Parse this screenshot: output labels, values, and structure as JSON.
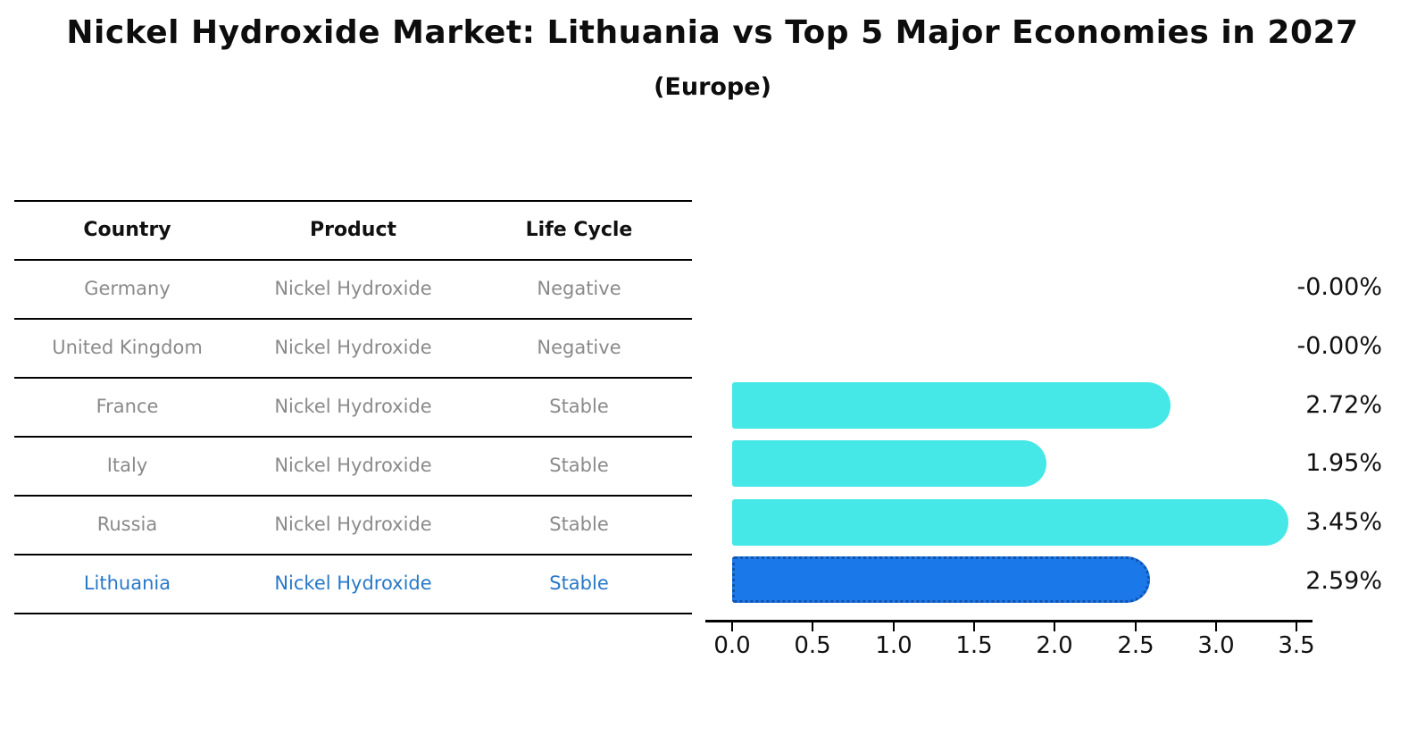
{
  "header": {
    "title": "Nickel Hydroxide Market: Lithuania vs Top 5 Major Economies in 2027",
    "subtitle": "(Europe)"
  },
  "table": {
    "columns": [
      "Country",
      "Product",
      "Life Cycle"
    ],
    "rows": [
      {
        "country": "Germany",
        "product": "Nickel Hydroxide",
        "life_cycle": "Negative",
        "highlight": false
      },
      {
        "country": "United Kingdom",
        "product": "Nickel Hydroxide",
        "life_cycle": "Negative",
        "highlight": false
      },
      {
        "country": "France",
        "product": "Nickel Hydroxide",
        "life_cycle": "Stable",
        "highlight": false
      },
      {
        "country": "Italy",
        "product": "Nickel Hydroxide",
        "life_cycle": "Stable",
        "highlight": false
      },
      {
        "country": "Russia",
        "product": "Nickel Hydroxide",
        "life_cycle": "Stable",
        "highlight": false
      },
      {
        "country": "Lithuania",
        "product": "Nickel Hydroxide",
        "life_cycle": "Stable",
        "highlight": true
      }
    ]
  },
  "chart_data": {
    "type": "bar",
    "orientation": "horizontal",
    "title": "Nickel Hydroxide Market: Lithuania vs Top 5 Major Economies in 2027 (Europe)",
    "categories": [
      "Germany",
      "United Kingdom",
      "France",
      "Italy",
      "Russia",
      "Lithuania"
    ],
    "values": [
      -0.0,
      -0.0,
      2.72,
      1.95,
      3.45,
      2.59
    ],
    "value_labels": [
      "-0.00%",
      "-0.00%",
      "2.72%",
      "1.95%",
      "3.45%",
      "2.59%"
    ],
    "xticklabels": [
      "0.0",
      "0.5",
      "1.0",
      "1.5",
      "2.0",
      "2.5",
      "3.0",
      "3.5"
    ],
    "xlim": [
      0,
      3.65
    ],
    "grid": false,
    "legend": false,
    "bar_color": "#45e7e7",
    "highlight_index": 5,
    "highlight_bar_color": "#1b78e8",
    "highlight_border_color": "#1153ad",
    "highlight_text_color": "#2878c8"
  }
}
